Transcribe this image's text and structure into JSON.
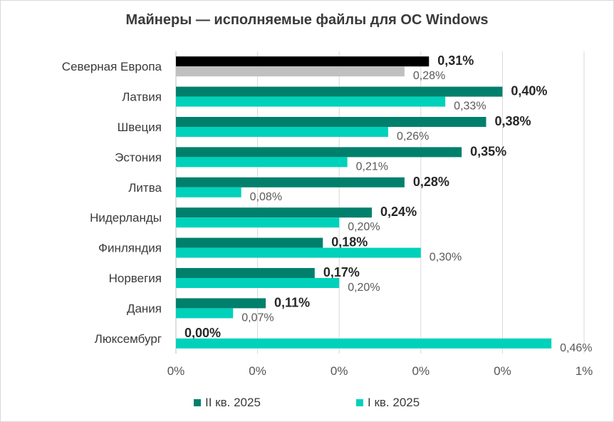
{
  "chart_data": {
    "type": "bar",
    "orientation": "horizontal",
    "title": "Майнеры — исполняемые файлы для ОС Windows",
    "categories": [
      "Северная Европа",
      "Латвия",
      "Швеция",
      "Эстония",
      "Литва",
      "Нидерланды",
      "Финляндия",
      "Норвегия",
      "Дания",
      "Люксембург"
    ],
    "series": [
      {
        "name": "II кв. 2025",
        "values": [
          0.31,
          0.4,
          0.38,
          0.35,
          0.28,
          0.24,
          0.18,
          0.17,
          0.11,
          0.0
        ],
        "labels": [
          "0,31%",
          "0,40%",
          "0,38%",
          "0,35%",
          "0,28%",
          "0,24%",
          "0,18%",
          "0,17%",
          "0,11%",
          "0,00%"
        ],
        "color": "#00806c",
        "first_category_color": "#000000"
      },
      {
        "name": "I кв. 2025",
        "values": [
          0.28,
          0.33,
          0.26,
          0.21,
          0.08,
          0.2,
          0.3,
          0.2,
          0.07,
          0.46
        ],
        "labels": [
          "0,28%",
          "0,33%",
          "0,26%",
          "0,21%",
          "0,08%",
          "0,20%",
          "0,30%",
          "0,20%",
          "0,07%",
          "0,46%"
        ],
        "color": "#00d1bb",
        "first_category_color": "#c0c0c0"
      }
    ],
    "x_ticks": [
      "0%",
      "0%",
      "0%",
      "0%",
      "0%",
      "1%"
    ],
    "xlim": [
      0,
      0.5
    ],
    "grid": true,
    "legend_position": "bottom"
  }
}
